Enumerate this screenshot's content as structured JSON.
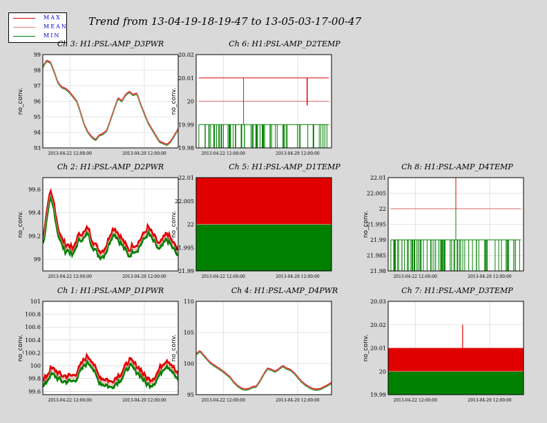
{
  "title": "Trend from 13-04-19-18-19-47 to 13-05-03-17-00-47",
  "legend": [
    {
      "label": "MAX",
      "color": "#e00000"
    },
    {
      "label": "MEAN",
      "color": "#e08080"
    },
    {
      "label": "MIN",
      "color": "#008000"
    }
  ],
  "x_ticks": [
    "2013-04-22 12:00:00",
    "2013-04-29 12:00:00"
  ],
  "ylabel": "no_conv.",
  "chart_data": [
    {
      "type": "line",
      "title": "Ch 3: H1:PSL-AMP_D3PWR",
      "ylim": [
        93,
        99
      ],
      "yticks": [
        "99",
        "98",
        "97",
        "96",
        "95",
        "94",
        "93"
      ],
      "style": "smooth",
      "spread": 0.06,
      "series": [
        {
          "name": "MAX",
          "values": [
            98.2,
            98.6,
            98.5,
            97.9,
            97.2,
            96.9,
            96.8,
            96.6,
            96.3,
            96.0,
            95.3,
            94.5,
            94.0,
            93.7,
            93.5,
            93.8,
            93.9,
            94.1,
            94.8,
            95.5,
            96.2,
            96.0,
            96.4,
            96.6,
            96.4,
            96.5,
            95.8,
            95.2,
            94.6,
            94.2,
            93.8,
            93.4,
            93.3,
            93.2,
            93.4,
            93.8,
            94.2
          ]
        }
      ]
    },
    {
      "type": "line",
      "title": "Ch 6: H1:PSL-AMP_D2TEMP",
      "ylim": [
        19.98,
        20.02
      ],
      "yticks": [
        "20.02",
        "20.01",
        "20",
        "19.99",
        "19.98"
      ],
      "style": "temp",
      "max": 20.01,
      "mean": 20.0,
      "min": 19.99,
      "floor": 19.98,
      "spikeDown": 20.0
    },
    null,
    {
      "type": "line",
      "title": "Ch 2: H1:PSL-AMP_D2PWR",
      "ylim": [
        98.9,
        99.7
      ],
      "yticks": [
        "99.6",
        "99.4",
        "99.2",
        "99"
      ],
      "style": "noisy",
      "spread": 0.1,
      "series": [
        {
          "name": "MEAN",
          "values": [
            99.15,
            99.35,
            99.55,
            99.45,
            99.25,
            99.15,
            99.1,
            99.1,
            99.05,
            99.15,
            99.2,
            99.2,
            99.25,
            99.15,
            99.1,
            99.05,
            99.05,
            99.1,
            99.2,
            99.25,
            99.2,
            99.15,
            99.1,
            99.05,
            99.1,
            99.1,
            99.15,
            99.2,
            99.25,
            99.2,
            99.15,
            99.1,
            99.15,
            99.2,
            99.15,
            99.1,
            99.05
          ]
        }
      ]
    },
    {
      "type": "area",
      "title": "Ch 5: H1:PSL-AMP_D1TEMP",
      "ylim": [
        21.99,
        22.01
      ],
      "yticks": [
        "22.01",
        "22.005",
        "22",
        "21.995",
        "21.99"
      ],
      "style": "block",
      "max": 22.01,
      "mean": 22.0,
      "min": 21.99
    },
    {
      "type": "line",
      "title": "Ch 8: H1:PSL-AMP_D4TEMP",
      "ylim": [
        21.98,
        22.01
      ],
      "yticks": [
        "22.01",
        "22.005",
        "22",
        "21.995",
        "21.99",
        "21.985",
        "21.98"
      ],
      "style": "temp",
      "max": 22.0,
      "mean": 22.0,
      "min": 21.99,
      "floor": 21.98,
      "spikeUp": 22.01
    },
    {
      "type": "line",
      "title": "Ch 1: H1:PSL-AMP_D1PWR",
      "ylim": [
        99.55,
        101
      ],
      "yticks": [
        "101",
        "100.8",
        "100.6",
        "100.4",
        "100.2",
        "100",
        "99.8",
        "99.6"
      ],
      "style": "noisy",
      "spread": 0.1,
      "series": [
        {
          "name": "MEAN",
          "values": [
            99.7,
            99.8,
            99.9,
            99.9,
            99.85,
            99.8,
            99.8,
            99.8,
            99.8,
            99.85,
            99.95,
            100.05,
            100.1,
            100.05,
            99.9,
            99.8,
            99.75,
            99.75,
            99.7,
            99.75,
            99.8,
            99.85,
            99.95,
            100.05,
            100.0,
            99.95,
            99.9,
            99.8,
            99.75,
            99.75,
            99.8,
            99.9,
            100.0,
            100.05,
            100.0,
            99.9,
            99.8
          ]
        }
      ]
    },
    {
      "type": "line",
      "title": "Ch 4: H1:PSL-AMP_D4PWR",
      "ylim": [
        95,
        110
      ],
      "yticks": [
        "110",
        "105",
        "100",
        "95"
      ],
      "style": "smooth",
      "spread": 0.1,
      "series": [
        {
          "name": "MAX",
          "values": [
            101.5,
            102.0,
            101.3,
            100.6,
            100.0,
            99.6,
            99.2,
            98.8,
            98.3,
            97.8,
            97.0,
            96.4,
            96.0,
            95.8,
            95.9,
            96.2,
            96.3,
            97.2,
            98.3,
            99.2,
            99.0,
            98.7,
            99.1,
            99.6,
            99.2,
            99.0,
            98.5,
            97.8,
            97.1,
            96.6,
            96.2,
            95.9,
            95.8,
            95.9,
            96.2,
            96.5,
            96.9
          ]
        }
      ]
    },
    {
      "type": "area",
      "title": "Ch 7: H1:PSL-AMP_D3TEMP",
      "ylim": [
        19.99,
        20.03
      ],
      "yticks": [
        "20.03",
        "20.02",
        "20.01",
        "20",
        "19.99"
      ],
      "style": "blockmid",
      "max": 20.01,
      "mean": 20.0,
      "min": 19.99,
      "spikeUp": 20.02
    }
  ]
}
